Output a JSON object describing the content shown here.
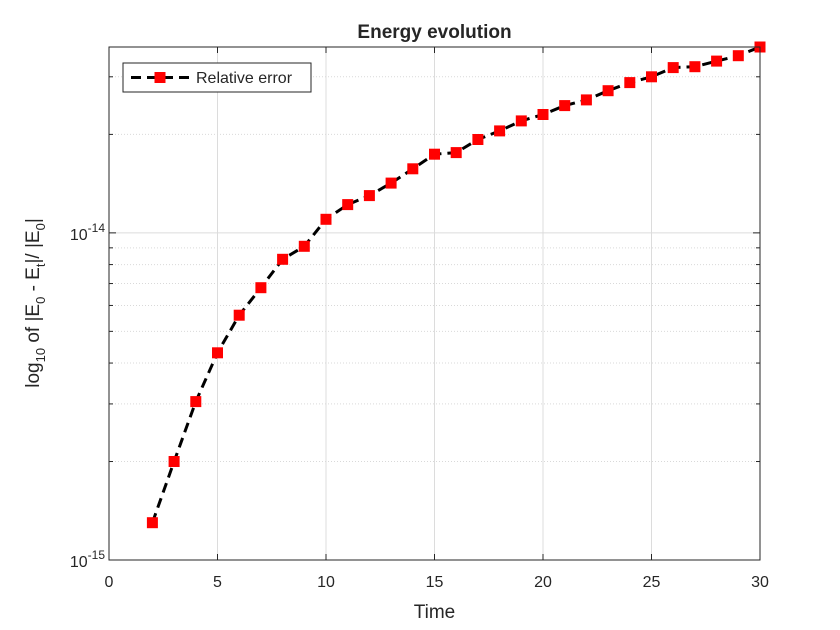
{
  "chart_data": {
    "type": "line",
    "title": "Energy evolution",
    "xlabel": "Time",
    "ylabel": {
      "prefix": "log",
      "prefix_sub": "10",
      "text1": " of |E",
      "sub1": "0",
      "text2": " - E",
      "sub2": "t",
      "text3": "|/ |E",
      "sub3": "0",
      "text4": "|"
    },
    "xlim": [
      0,
      30
    ],
    "ylim": [
      1e-15,
      3.7e-14
    ],
    "yscale": "log",
    "grid": true,
    "legend_position": "top-left",
    "x_ticks": [
      0,
      5,
      10,
      15,
      20,
      25,
      30
    ],
    "y_ticks": [
      {
        "value": 1e-15,
        "base": "10",
        "exp": "-15"
      },
      {
        "value": 1e-14,
        "base": "10",
        "exp": "-14"
      }
    ],
    "series": [
      {
        "name": "Relative error",
        "line_color": "#000000",
        "line_style": "dashed",
        "marker": "square",
        "marker_color": "#ff0000",
        "x": [
          2,
          3,
          4,
          5,
          6,
          7,
          8,
          9,
          10,
          11,
          12,
          13,
          14,
          15,
          16,
          17,
          18,
          19,
          20,
          21,
          22,
          23,
          24,
          25,
          26,
          27,
          28,
          29,
          30
        ],
        "y": [
          1.3e-15,
          2e-15,
          3.05e-15,
          4.3e-15,
          5.6e-15,
          6.8e-15,
          8.3e-15,
          9.1e-15,
          1.1e-14,
          1.22e-14,
          1.3e-14,
          1.42e-14,
          1.57e-14,
          1.74e-14,
          1.76e-14,
          1.93e-14,
          2.05e-14,
          2.2e-14,
          2.3e-14,
          2.45e-14,
          2.55e-14,
          2.72e-14,
          2.88e-14,
          3e-14,
          3.2e-14,
          3.22e-14,
          3.35e-14,
          3.48e-14,
          3.7e-14
        ]
      }
    ]
  }
}
